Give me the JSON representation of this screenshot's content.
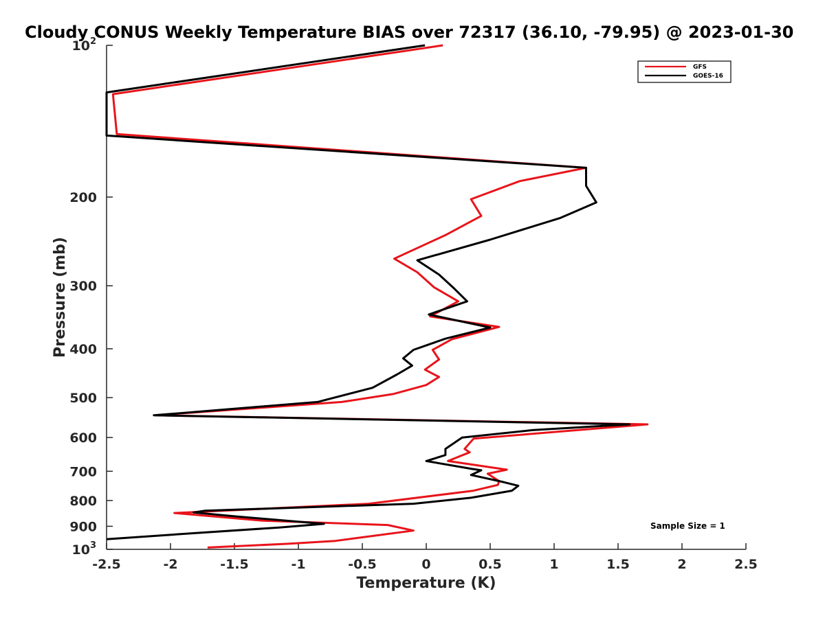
{
  "chart_data": {
    "type": "line",
    "title": "Cloudy CONUS Weekly Temperature BIAS over 72317 (36.10, -79.95) @ 2023-01-30",
    "xlabel": "Temperature (K)",
    "ylabel": "Pressure (mb)",
    "xlim": [
      -2.5,
      2.5
    ],
    "ylim": [
      100,
      1000
    ],
    "y_scale": "log",
    "y_reversed": true,
    "grid": false,
    "legend_position": "top-right",
    "x_ticks": [
      "-2.5",
      "-2",
      "-1.5",
      "-1",
      "-0.5",
      "0",
      "0.5",
      "1",
      "1.5",
      "2",
      "2.5"
    ],
    "y_ticks": [
      {
        "value": 100,
        "base": "10",
        "exp": "2"
      },
      {
        "value": 200,
        "label": "200"
      },
      {
        "value": 300,
        "label": "300"
      },
      {
        "value": 400,
        "label": "400"
      },
      {
        "value": 500,
        "label": "500"
      },
      {
        "value": 600,
        "label": "600"
      },
      {
        "value": 700,
        "label": "700"
      },
      {
        "value": 800,
        "label": "800"
      },
      {
        "value": 900,
        "label": "900"
      },
      {
        "value": 1000,
        "base": "10",
        "exp": "3"
      }
    ],
    "annotation": "Sample Size = 1",
    "series": [
      {
        "name": "GFS",
        "color": "#e8141a",
        "points": [
          [
            0.13,
            100
          ],
          [
            -2.45,
            125
          ],
          [
            -2.42,
            150
          ],
          [
            1.25,
            175
          ],
          [
            0.73,
            186
          ],
          [
            0.35,
            202
          ],
          [
            0.43,
            218
          ],
          [
            0.15,
            238
          ],
          [
            -0.25,
            265
          ],
          [
            -0.07,
            282
          ],
          [
            0.06,
            302
          ],
          [
            0.25,
            322
          ],
          [
            0.03,
            345
          ],
          [
            0.57,
            362
          ],
          [
            0.2,
            383
          ],
          [
            0.05,
            402
          ],
          [
            0.1,
            420
          ],
          [
            -0.01,
            440
          ],
          [
            0.1,
            455
          ],
          [
            0.0,
            472
          ],
          [
            -0.26,
            492
          ],
          [
            -0.66,
            510
          ],
          [
            -2.12,
            542
          ],
          [
            1.73,
            565
          ],
          [
            0.37,
            603
          ],
          [
            0.3,
            632
          ],
          [
            0.34,
            642
          ],
          [
            0.17,
            668
          ],
          [
            0.63,
            695
          ],
          [
            0.48,
            708
          ],
          [
            0.57,
            732
          ],
          [
            0.56,
            745
          ],
          [
            0.37,
            765
          ],
          [
            -0.45,
            812
          ],
          [
            -1.97,
            847
          ],
          [
            -1.28,
            877
          ],
          [
            -0.3,
            895
          ],
          [
            -0.1,
            918
          ],
          [
            -0.48,
            945
          ],
          [
            -0.71,
            962
          ],
          [
            -1.08,
            975
          ],
          [
            -1.71,
            992
          ]
        ]
      },
      {
        "name": "GOES-16",
        "color": "#000000",
        "points": [
          [
            -0.01,
            100
          ],
          [
            -2.5,
            124
          ],
          [
            -2.5,
            151
          ],
          [
            1.25,
            175
          ],
          [
            1.25,
            190
          ],
          [
            1.33,
            205
          ],
          [
            1.05,
            220
          ],
          [
            0.5,
            243
          ],
          [
            -0.07,
            267
          ],
          [
            0.1,
            285
          ],
          [
            0.22,
            304
          ],
          [
            0.32,
            322
          ],
          [
            0.02,
            342
          ],
          [
            0.5,
            363
          ],
          [
            0.15,
            382
          ],
          [
            -0.1,
            402
          ],
          [
            -0.18,
            418
          ],
          [
            -0.11,
            432
          ],
          [
            -0.23,
            450
          ],
          [
            -0.42,
            478
          ],
          [
            -0.85,
            510
          ],
          [
            -2.13,
            542
          ],
          [
            1.59,
            565
          ],
          [
            0.83,
            580
          ],
          [
            0.28,
            600
          ],
          [
            0.15,
            632
          ],
          [
            0.15,
            650
          ],
          [
            0.0,
            668
          ],
          [
            0.35,
            692
          ],
          [
            0.43,
            697
          ],
          [
            0.35,
            712
          ],
          [
            0.6,
            735
          ],
          [
            0.72,
            748
          ],
          [
            0.67,
            765
          ],
          [
            0.35,
            790
          ],
          [
            -0.1,
            812
          ],
          [
            -1.73,
            838
          ],
          [
            -1.82,
            845
          ],
          [
            -1.5,
            860
          ],
          [
            -0.8,
            890
          ],
          [
            -1.15,
            905
          ],
          [
            -1.85,
            930
          ],
          [
            -2.5,
            955
          ]
        ]
      }
    ]
  }
}
